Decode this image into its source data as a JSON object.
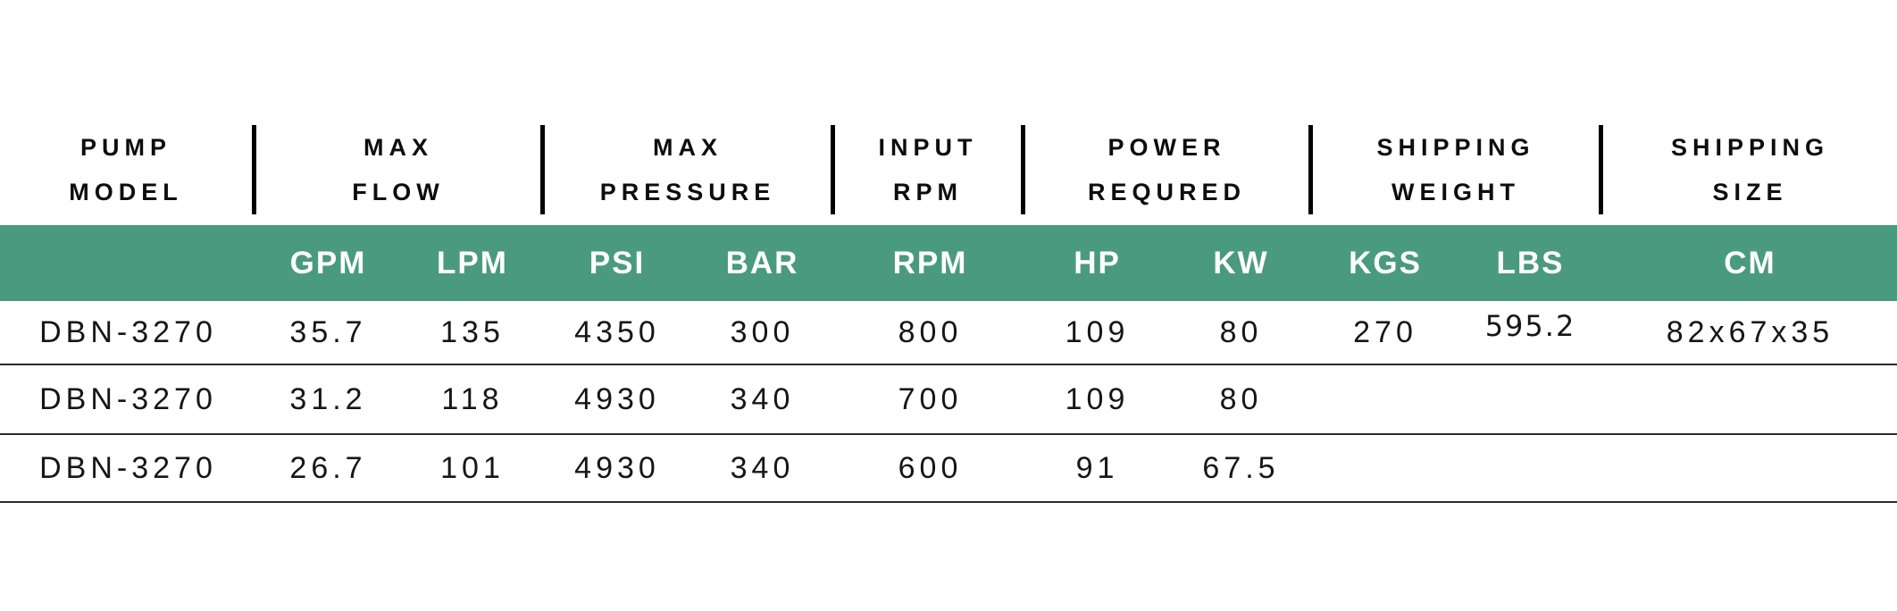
{
  "colors": {
    "band_green": "#4a9a80",
    "row_divider": "#2b2b2b",
    "separator": "#000000",
    "header_text": "#0d0d0d",
    "unit_text": "#ffffff",
    "data_text": "#161616"
  },
  "header_groups": [
    {
      "line1": "PUMP",
      "line2": "MODEL"
    },
    {
      "line1": "MAX",
      "line2": "FLOW"
    },
    {
      "line1": "MAX",
      "line2": "PRESSURE"
    },
    {
      "line1": "INPUT",
      "line2": "RPM"
    },
    {
      "line1": "POWER",
      "line2": "REQURED"
    },
    {
      "line1": "SHIPPING",
      "line2": "WEIGHT"
    },
    {
      "line1": "SHIPPING",
      "line2": "SIZE"
    }
  ],
  "units": {
    "model": "",
    "gpm": "GPM",
    "lpm": "LPM",
    "psi": "PSI",
    "bar": "BAR",
    "rpm": "RPM",
    "hp": "HP",
    "kw": "KW",
    "kgs": "KGS",
    "lbs": "LBS",
    "cm": "CM"
  },
  "rows": [
    {
      "model": "DBN-3270",
      "gpm": "35.7",
      "lpm": "135",
      "psi": "4350",
      "bar": "300",
      "rpm": "800",
      "hp": "109",
      "kw": "80",
      "kgs": "270",
      "lbs": "595.2",
      "cm": "82x67x35"
    },
    {
      "model": "DBN-3270",
      "gpm": "31.2",
      "lpm": "118",
      "psi": "4930",
      "bar": "340",
      "rpm": "700",
      "hp": "109",
      "kw": "80",
      "kgs": "",
      "lbs": "",
      "cm": ""
    },
    {
      "model": "DBN-3270",
      "gpm": "26.7",
      "lpm": "101",
      "psi": "4930",
      "bar": "340",
      "rpm": "600",
      "hp": "91",
      "kw": "67.5",
      "kgs": "",
      "lbs": "",
      "cm": ""
    }
  ]
}
